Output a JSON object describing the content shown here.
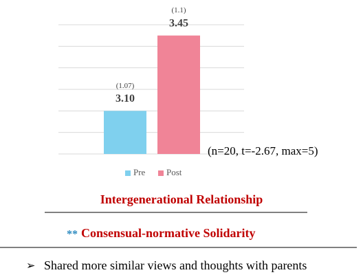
{
  "chart_data": {
    "type": "bar",
    "series": [
      {
        "name": "Pre",
        "color": "#7fd0ee",
        "values": [
          3.1
        ],
        "value_labels": [
          "3.10"
        ],
        "sd_labels": [
          "(1.07)"
        ]
      },
      {
        "name": "Post",
        "color": "#f08497",
        "values": [
          3.45
        ],
        "value_labels": [
          "3.45"
        ],
        "sd_labels": [
          "(1.1)"
        ]
      }
    ],
    "ylim": [
      2.9,
      3.5
    ],
    "yticks": [
      2.9,
      3.0,
      3.1,
      3.2,
      3.3,
      3.4,
      3.5
    ],
    "grid": true,
    "annotation": "(n=20, t=-2.67, max=5)",
    "legend": "bottom"
  },
  "heading": "Intergenerational Relationship",
  "marker": "**",
  "subheading": "Consensual-normative Solidarity",
  "bullet": "Shared more similar views and thoughts with parents"
}
